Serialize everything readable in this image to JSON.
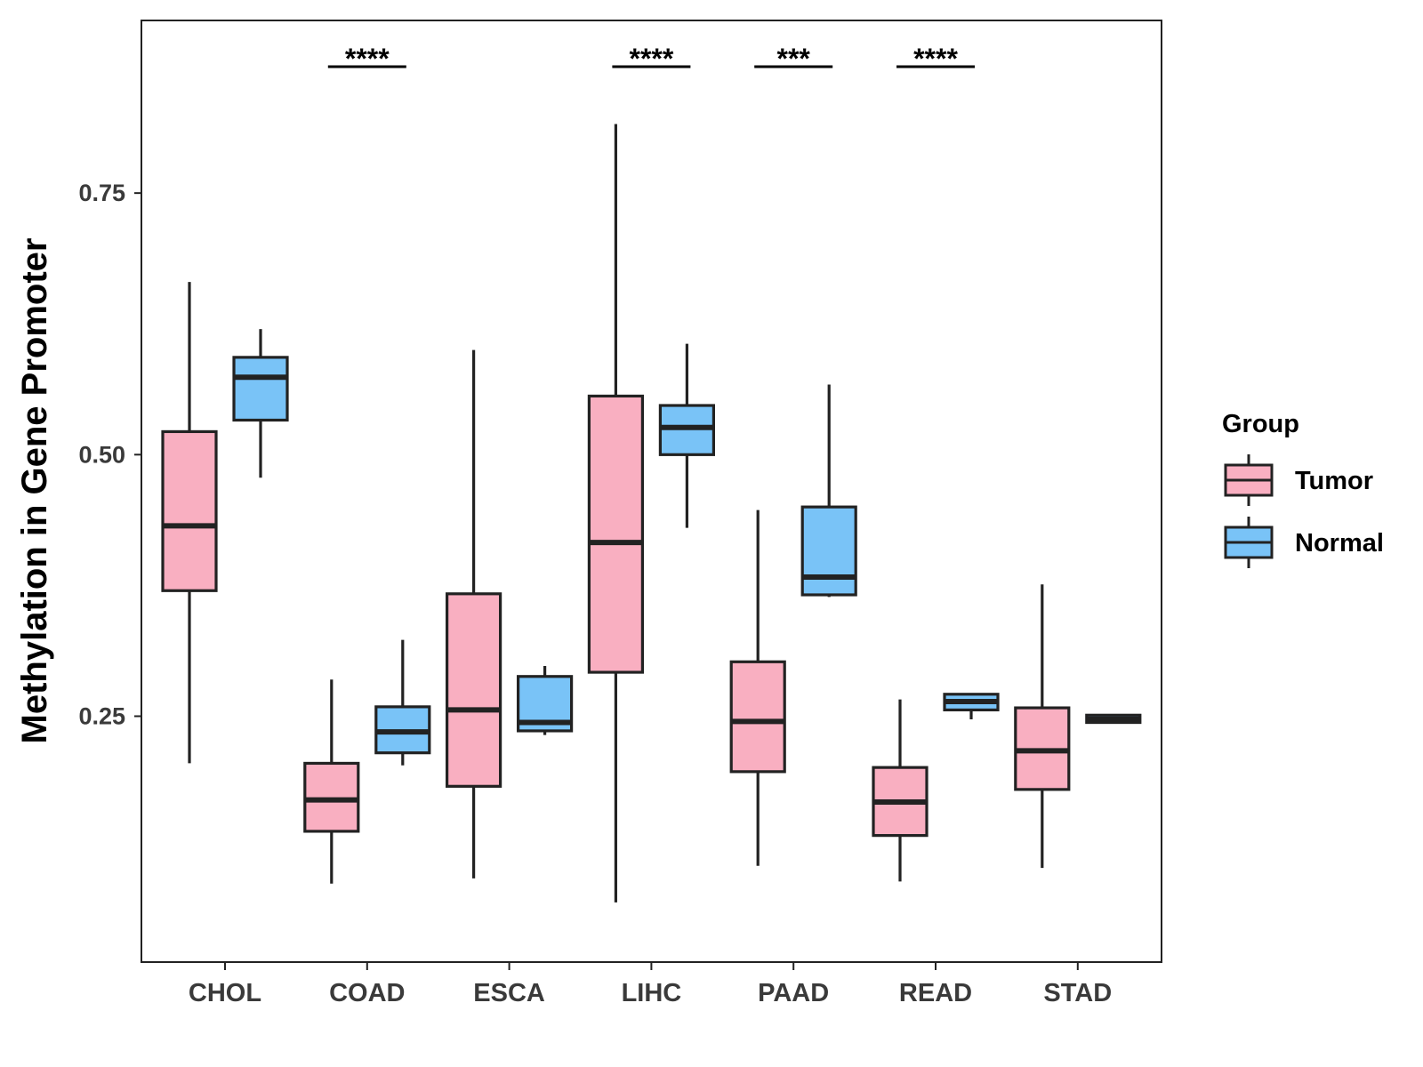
{
  "chart_data": {
    "type": "boxplot",
    "title": "",
    "xlabel": "",
    "ylabel": "Methylation in Gene Promoter",
    "ylim": [
      0.015,
      0.915
    ],
    "yticks": [
      0.25,
      0.5,
      0.75
    ],
    "ytick_labels": [
      "0.25",
      "0.50",
      "0.75"
    ],
    "categories": [
      "CHOL",
      "COAD",
      "ESCA",
      "LIHC",
      "PAAD",
      "READ",
      "STAD"
    ],
    "legend": {
      "title": "Group",
      "position": "right",
      "entries": [
        {
          "name": "Tumor",
          "color": "#f9afc1"
        },
        {
          "name": "Normal",
          "color": "#79c3f7"
        }
      ]
    },
    "series": [
      {
        "name": "Tumor",
        "color": "#f9afc1",
        "boxes": [
          {
            "min": 0.205,
            "q1": 0.37,
            "median": 0.432,
            "q3": 0.522,
            "max": 0.665
          },
          {
            "min": 0.09,
            "q1": 0.14,
            "median": 0.17,
            "q3": 0.205,
            "max": 0.285
          },
          {
            "min": 0.095,
            "q1": 0.183,
            "median": 0.256,
            "q3": 0.367,
            "max": 0.6
          },
          {
            "min": 0.072,
            "q1": 0.292,
            "median": 0.416,
            "q3": 0.556,
            "max": 0.816
          },
          {
            "min": 0.107,
            "q1": 0.197,
            "median": 0.245,
            "q3": 0.302,
            "max": 0.447
          },
          {
            "min": 0.092,
            "q1": 0.136,
            "median": 0.168,
            "q3": 0.201,
            "max": 0.266
          },
          {
            "min": 0.105,
            "q1": 0.18,
            "median": 0.217,
            "q3": 0.258,
            "max": 0.376
          }
        ]
      },
      {
        "name": "Normal",
        "color": "#79c3f7",
        "boxes": [
          {
            "min": 0.478,
            "q1": 0.533,
            "median": 0.574,
            "q3": 0.593,
            "max": 0.62
          },
          {
            "min": 0.203,
            "q1": 0.215,
            "median": 0.235,
            "q3": 0.259,
            "max": 0.323
          },
          {
            "min": 0.232,
            "q1": 0.236,
            "median": 0.244,
            "q3": 0.288,
            "max": 0.298
          },
          {
            "min": 0.43,
            "q1": 0.5,
            "median": 0.526,
            "q3": 0.547,
            "max": 0.606
          },
          {
            "min": 0.364,
            "q1": 0.366,
            "median": 0.383,
            "q3": 0.45,
            "max": 0.567
          },
          {
            "min": 0.247,
            "q1": 0.256,
            "median": 0.264,
            "q3": 0.271,
            "max": 0.271
          },
          {
            "min": 0.243,
            "q1": 0.244,
            "median": 0.247,
            "q3": 0.251,
            "max": 0.252
          }
        ]
      }
    ],
    "annotations": [
      {
        "category": "COAD",
        "text": "****"
      },
      {
        "category": "LIHC",
        "text": "****"
      },
      {
        "category": "PAAD",
        "text": "***"
      },
      {
        "category": "READ",
        "text": "****"
      }
    ]
  }
}
